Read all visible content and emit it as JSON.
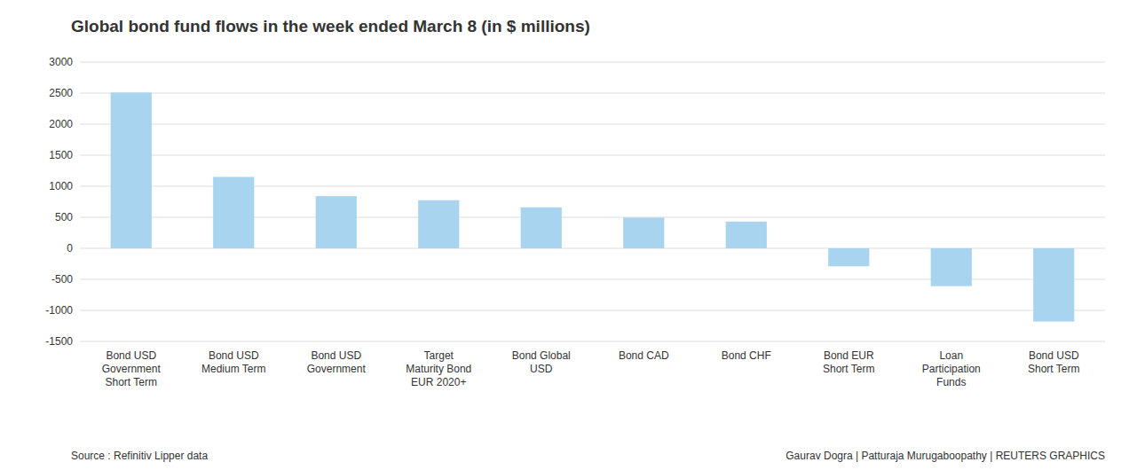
{
  "chart_data": {
    "type": "bar",
    "title": "Global bond fund flows in the week ended March 8 (in $ millions)",
    "categories": [
      "Bond USD\nGovernment\nShort Term",
      "Bond USD\nMedium Term",
      "Bond USD\nGovernment",
      "Target\nMaturity Bond\nEUR 2020+",
      "Bond Global\nUSD",
      "Bond CAD",
      "Bond CHF",
      "Bond EUR\nShort Term",
      "Loan\nParticipation\nFunds",
      "Bond USD\nShort Term"
    ],
    "values": [
      2510,
      1150,
      840,
      775,
      660,
      495,
      430,
      -290,
      -610,
      -1180
    ],
    "color": "#a8d4f0",
    "ylim": [
      -1500,
      3000
    ],
    "yticks": [
      -1500,
      -1000,
      -500,
      0,
      500,
      1000,
      1500,
      2000,
      2500,
      3000
    ],
    "grid": true,
    "annotations": [
      "Source : Refinitiv Lipper data",
      "Gaurav Dogra | Patturaja Murugaboopathy | REUTERS GRAPHICS"
    ]
  }
}
